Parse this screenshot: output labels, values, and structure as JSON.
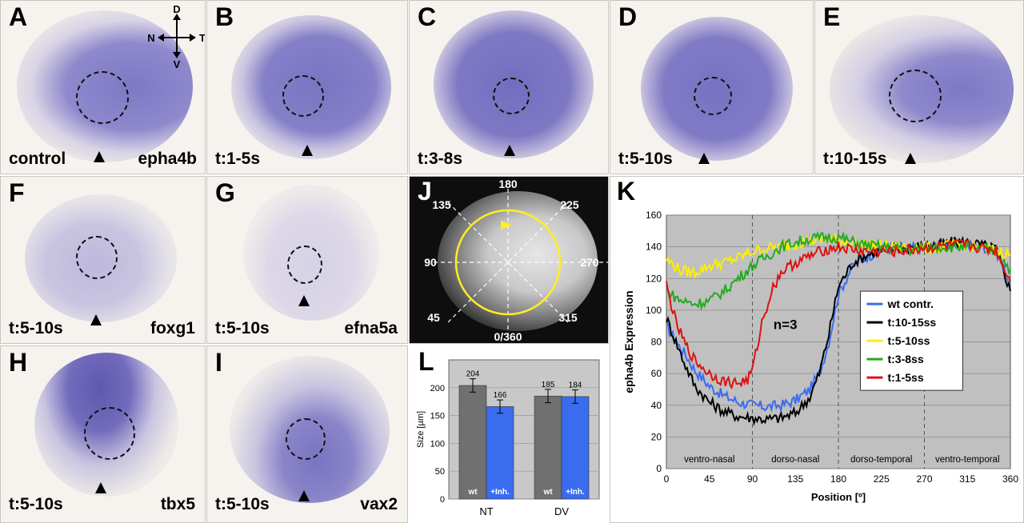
{
  "panels": {
    "A": {
      "letter": "A",
      "left": "control",
      "right": "epha4b"
    },
    "B": {
      "letter": "B",
      "left": "t:1-5s"
    },
    "C": {
      "letter": "C",
      "left": "t:3-8s"
    },
    "D": {
      "letter": "D",
      "left": "t:5-10s"
    },
    "E": {
      "letter": "E",
      "left": "t:10-15s"
    },
    "F": {
      "letter": "F",
      "left": "t:5-10s",
      "right": "foxg1"
    },
    "G": {
      "letter": "G",
      "left": "t:5-10s",
      "right": "efna5a"
    },
    "H": {
      "letter": "H",
      "left": "t:5-10s",
      "right": "tbx5"
    },
    "I": {
      "letter": "I",
      "left": "t:5-10s",
      "right": "vax2"
    },
    "J": {
      "letter": "J"
    },
    "K": {
      "letter": "K"
    },
    "L": {
      "letter": "L"
    }
  },
  "compass": {
    "d": "D",
    "v": "V",
    "n": "N",
    "t": "T"
  },
  "polar": {
    "labels": [
      "180",
      "225",
      "270",
      "315",
      "0/360",
      "45",
      "90",
      "135"
    ]
  },
  "colors": {
    "stain": "#7a74c0",
    "ring": "#ffee22",
    "wt": "#3a6cf0",
    "series_blue": "#3a6cf0",
    "gray": "#707070"
  },
  "chart_data": [
    {
      "type": "line",
      "title": "",
      "xlabel": "Position [º]",
      "ylabel": "epha4b Expression",
      "xlim": [
        0,
        360
      ],
      "ylim": [
        0,
        160
      ],
      "xticks": [
        "0",
        "45",
        "90",
        "135",
        "180",
        "225",
        "270",
        "315",
        "360"
      ],
      "yticks": [
        "0",
        "20",
        "40",
        "60",
        "80",
        "100",
        "120",
        "140",
        "160"
      ],
      "annotation": "n=3",
      "regions": [
        "ventro-nasal",
        "dorso-nasal",
        "dorso-temporal",
        "ventro-temporal"
      ],
      "series": [
        {
          "name": "wt contr.",
          "color": "#3a6cf0",
          "x": [
            0,
            10,
            20,
            30,
            45,
            60,
            75,
            90,
            105,
            120,
            135,
            150,
            160,
            170,
            180,
            195,
            210,
            225,
            240,
            255,
            270,
            285,
            300,
            315,
            330,
            345,
            360
          ],
          "y": [
            90,
            80,
            72,
            62,
            52,
            46,
            42,
            40,
            39,
            40,
            43,
            50,
            60,
            80,
            110,
            128,
            134,
            138,
            140,
            139,
            140,
            141,
            142,
            141,
            140,
            138,
            116
          ]
        },
        {
          "name": "t:10-15ss",
          "color": "#000000",
          "x": [
            0,
            10,
            20,
            30,
            45,
            60,
            75,
            90,
            105,
            120,
            135,
            150,
            160,
            170,
            180,
            195,
            210,
            225,
            240,
            255,
            270,
            285,
            300,
            315,
            330,
            345,
            360
          ],
          "y": [
            95,
            80,
            65,
            52,
            42,
            36,
            33,
            32,
            31,
            32,
            35,
            45,
            60,
            85,
            115,
            130,
            135,
            138,
            139,
            140,
            140,
            141,
            143,
            143,
            141,
            139,
            112
          ]
        },
        {
          "name": "t:5-10ss",
          "color": "#ffee00",
          "x": [
            0,
            15,
            30,
            45,
            60,
            75,
            90,
            105,
            120,
            135,
            150,
            165,
            180,
            195,
            210,
            225,
            240,
            255,
            270,
            285,
            300,
            315,
            330,
            345,
            360
          ],
          "y": [
            132,
            125,
            124,
            128,
            130,
            133,
            137,
            139,
            140,
            142,
            144,
            145,
            144,
            142,
            141,
            141,
            140,
            140,
            139,
            140,
            141,
            141,
            139,
            138,
            135
          ]
        },
        {
          "name": "t:3-8ss",
          "color": "#22aa22",
          "x": [
            0,
            15,
            30,
            45,
            60,
            75,
            90,
            105,
            120,
            135,
            150,
            165,
            180,
            195,
            210,
            225,
            240,
            255,
            270,
            285,
            300,
            315,
            330,
            345,
            360
          ],
          "y": [
            112,
            106,
            104,
            106,
            112,
            120,
            128,
            134,
            140,
            143,
            145,
            146,
            146,
            143,
            141,
            140,
            139,
            138,
            139,
            140,
            140,
            140,
            139,
            137,
            126
          ]
        },
        {
          "name": "t:1-5ss",
          "color": "#dd1111",
          "x": [
            0,
            10,
            20,
            30,
            45,
            60,
            75,
            85,
            90,
            100,
            110,
            120,
            135,
            150,
            165,
            180,
            195,
            210,
            225,
            240,
            255,
            270,
            285,
            300,
            315,
            330,
            345,
            360
          ],
          "y": [
            116,
            92,
            78,
            68,
            60,
            55,
            54,
            56,
            62,
            92,
            112,
            124,
            130,
            134,
            138,
            140,
            138,
            137,
            137,
            137,
            138,
            139,
            140,
            141,
            141,
            139,
            138,
            118
          ]
        }
      ]
    },
    {
      "type": "bar",
      "title": "",
      "xlabel": "",
      "ylabel": "Size [µm]",
      "ylim": [
        0,
        250
      ],
      "yticks": [
        "0",
        "50",
        "100",
        "150",
        "200"
      ],
      "categories": [
        "NT",
        "DV"
      ],
      "series": [
        {
          "name": "wt",
          "color": "#707070",
          "values": [
            204,
            185
          ],
          "labels": [
            "204",
            "185"
          ]
        },
        {
          "name": "+Inh.",
          "color": "#3a6cf0",
          "values": [
            166,
            184
          ],
          "labels": [
            "166",
            "184"
          ]
        }
      ]
    }
  ]
}
